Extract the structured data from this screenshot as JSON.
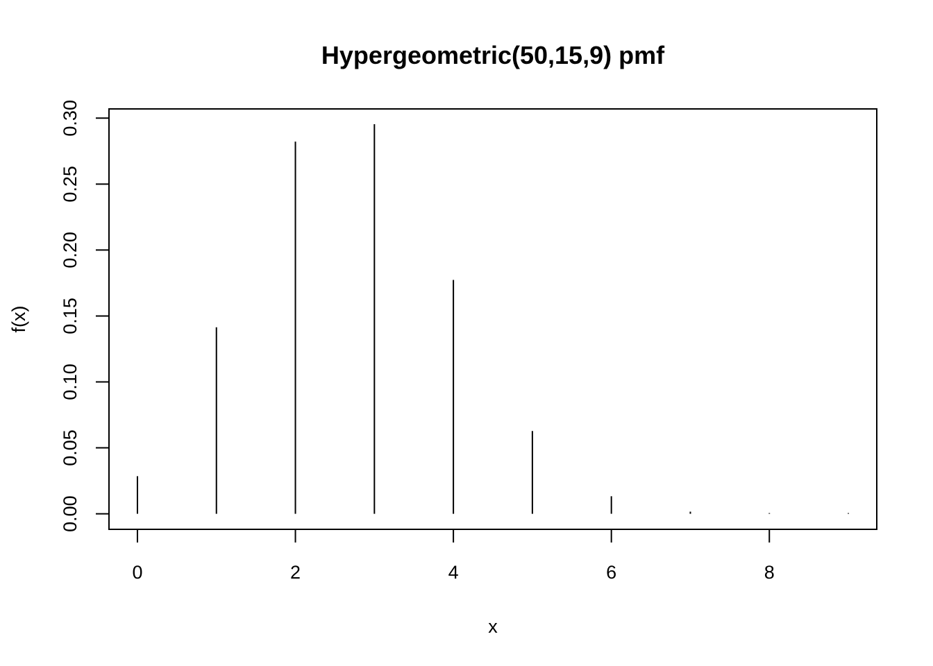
{
  "chart_data": {
    "type": "bar",
    "style": "spike",
    "title": "Hypergeometric(50,15,9) pmf",
    "xlabel": "x",
    "ylabel": "f(x)",
    "x": [
      0,
      1,
      2,
      3,
      4,
      5,
      6,
      7,
      8,
      9
    ],
    "values": [
      0.0285,
      0.1414,
      0.2822,
      0.2954,
      0.1773,
      0.0628,
      0.0133,
      0.0016,
      0.0001,
      3e-06
    ],
    "xlim": [
      -0.36,
      9.36
    ],
    "ylim": [
      -0.0118,
      0.307
    ],
    "xticks": [
      0,
      2,
      4,
      6,
      8
    ],
    "xtick_labels": [
      "0",
      "2",
      "4",
      "6",
      "8"
    ],
    "yticks": [
      0,
      0.05,
      0.1,
      0.15,
      0.2,
      0.25,
      0.3
    ],
    "ytick_labels": [
      "0.00",
      "0.05",
      "0.10",
      "0.15",
      "0.20",
      "0.25",
      "0.30"
    ],
    "grid": false,
    "legend": "none",
    "colors": {
      "line": "#000000",
      "background": "#ffffff"
    }
  }
}
